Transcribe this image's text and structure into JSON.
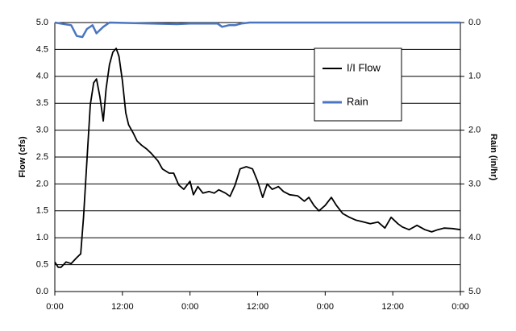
{
  "chart_data": {
    "type": "line",
    "ylabel": "Flow (cfs)",
    "y2label": "Rain (in/hr)",
    "xlim": [
      0,
      72
    ],
    "xticks": [
      {
        "value": 0,
        "label": "0:00"
      },
      {
        "value": 12,
        "label": "12:00"
      },
      {
        "value": 24,
        "label": "0:00"
      },
      {
        "value": 36,
        "label": "12:00"
      },
      {
        "value": 48,
        "label": "0:00"
      },
      {
        "value": 60,
        "label": "12:00"
      },
      {
        "value": 72,
        "label": "0:00"
      }
    ],
    "ylim": [
      0,
      5
    ],
    "yticks": [
      {
        "value": 0,
        "label": "0.0"
      },
      0.5,
      {
        "value": 1,
        "label": "1.0"
      },
      1.5,
      {
        "value": 2,
        "label": "2.0"
      },
      2.5,
      {
        "value": 3,
        "label": "3.0"
      },
      3.5,
      {
        "value": 4,
        "label": "4.0"
      },
      4.5,
      {
        "value": 5,
        "label": "5.0"
      }
    ],
    "y2lim": [
      0,
      5
    ],
    "y2_inverted": true,
    "y2ticks": [
      {
        "value": 0,
        "label": "0.0"
      },
      {
        "value": 1,
        "label": "1.0"
      },
      {
        "value": 2,
        "label": "2.0"
      },
      {
        "value": 3,
        "label": "3.0"
      },
      {
        "value": 4,
        "label": "4.0"
      },
      {
        "value": 5,
        "label": "5.0"
      }
    ],
    "grid": true,
    "legend": "upper right",
    "series": [
      {
        "name": "I/I Flow",
        "color": "#000000",
        "x": [
          0,
          0.6,
          1.1,
          2,
          2.9,
          3.9,
          4.6,
          5.1,
          5.7,
          6.3,
          6.9,
          7.4,
          8,
          8.6,
          9.1,
          9.7,
          10.3,
          10.9,
          11.4,
          12,
          12.6,
          13.1,
          13.9,
          14.6,
          15.4,
          16.3,
          17.1,
          18.3,
          19.1,
          20.3,
          21.1,
          22,
          22.9,
          24,
          24.6,
          25.4,
          26.3,
          27.4,
          28.3,
          29.1,
          30.3,
          31.1,
          32,
          32.9,
          34,
          35.1,
          36,
          36.9,
          37.7,
          38.6,
          39.7,
          40.6,
          41.7,
          43.1,
          44.3,
          45.1,
          46,
          46.9,
          48,
          49.1,
          50,
          51.1,
          52.3,
          53.4,
          54.6,
          56,
          57.4,
          58.6,
          59.7,
          60.9,
          61.7,
          62.9,
          64.3,
          65.7,
          66.9,
          68,
          69.1,
          70.6,
          72
        ],
        "values": [
          0.55,
          0.45,
          0.45,
          0.55,
          0.52,
          0.63,
          0.7,
          1.38,
          2.43,
          3.47,
          3.88,
          3.95,
          3.62,
          3.17,
          3.77,
          4.22,
          4.45,
          4.52,
          4.37,
          3.92,
          3.32,
          3.1,
          2.95,
          2.8,
          2.72,
          2.65,
          2.57,
          2.43,
          2.28,
          2.2,
          2.2,
          1.98,
          1.9,
          2.05,
          1.8,
          1.95,
          1.83,
          1.86,
          1.83,
          1.89,
          1.83,
          1.77,
          1.98,
          2.28,
          2.32,
          2.28,
          2.05,
          1.75,
          2.0,
          1.9,
          1.95,
          1.86,
          1.8,
          1.78,
          1.68,
          1.75,
          1.6,
          1.5,
          1.6,
          1.75,
          1.6,
          1.45,
          1.38,
          1.33,
          1.3,
          1.26,
          1.29,
          1.18,
          1.38,
          1.26,
          1.2,
          1.15,
          1.23,
          1.15,
          1.11,
          1.15,
          1.18,
          1.17,
          1.15
        ]
      },
      {
        "name": "Rain",
        "color": "#4a76c0",
        "axis": "y2",
        "x": [
          0,
          1.7,
          2.9,
          3.9,
          4.9,
          5.7,
          6.7,
          7.4,
          8.6,
          9.7,
          21.7,
          24,
          28.9,
          29.7,
          30.9,
          32,
          33.1,
          34.6,
          72
        ],
        "values": [
          0,
          0.03,
          0.05,
          0.25,
          0.27,
          0.12,
          0.05,
          0.2,
          0.08,
          0,
          0.03,
          0.02,
          0.02,
          0.08,
          0.05,
          0.05,
          0.02,
          0,
          0
        ]
      }
    ]
  }
}
